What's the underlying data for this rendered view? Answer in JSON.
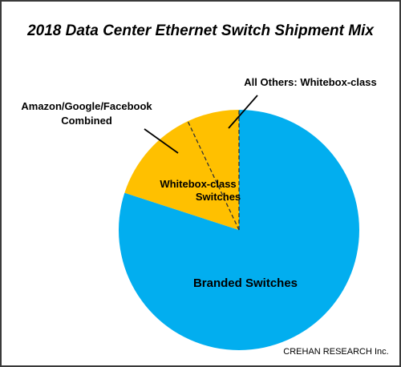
{
  "chart_data": {
    "type": "pie",
    "title": "2018 Data Center Ethernet Switch Shipment Mix",
    "slices": [
      {
        "name": "Branded Switches",
        "value": 80,
        "color": "#02AEEF"
      },
      {
        "name": "Amazon/Google/Facebook Combined",
        "value": 13,
        "color": "#FFC000"
      },
      {
        "name": "All Others: Whitebox-class",
        "value": 7,
        "color": "#FFC000"
      }
    ],
    "group_label": {
      "text_line1": "Whitebox-class",
      "text_line2": "Switches"
    },
    "annotations": {
      "amazon_line1": "Amazon/Google/Facebook",
      "amazon_line2": "Combined",
      "all_others": "All Others: Whitebox-class",
      "branded": "Branded Switches"
    },
    "source": "CREHAN RESEARCH Inc.",
    "colors": {
      "frame": "#3A3A3A",
      "title": "#000000",
      "outline": "#5A5A5A"
    }
  }
}
